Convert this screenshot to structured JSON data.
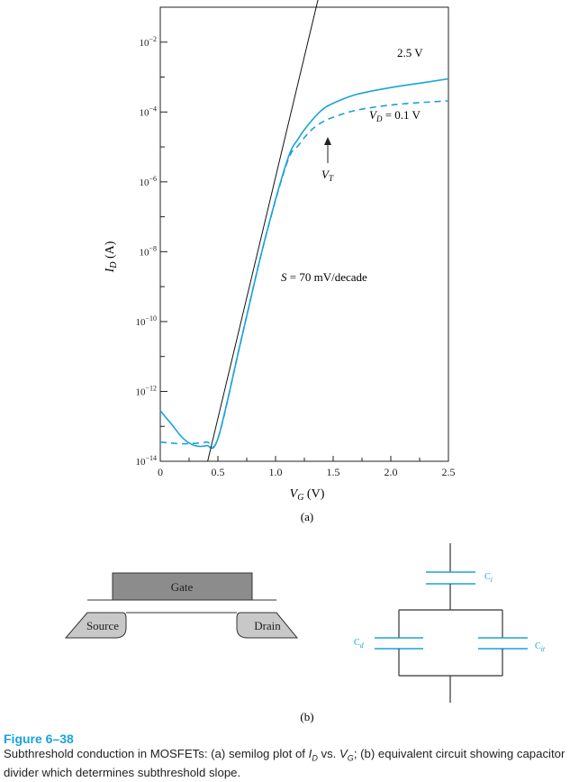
{
  "chart_data": {
    "type": "line",
    "x_range": [
      0,
      2.5
    ],
    "y_scale": "log",
    "y_range": [
      1e-14,
      0.1
    ],
    "x_ticks": [
      "0",
      "0.5",
      "1.0",
      "1.5",
      "2.0",
      "2.5"
    ],
    "x_tick_values": [
      0,
      0.5,
      1.0,
      1.5,
      2.0,
      2.5
    ],
    "y_tick_values": [
      -2,
      -4,
      -6,
      -8,
      -10,
      -12,
      -14
    ],
    "y_ticks": [
      {
        "base": "10",
        "exp": "−2"
      },
      {
        "base": "10",
        "exp": "−4"
      },
      {
        "base": "10",
        "exp": "−6"
      },
      {
        "base": "10",
        "exp": "−8"
      },
      {
        "base": "10",
        "exp": "−10"
      },
      {
        "base": "10",
        "exp": "−12"
      },
      {
        "base": "10",
        "exp": "−14"
      }
    ],
    "xlabel": {
      "var": "V",
      "sub": "G",
      "unit": " (V)"
    },
    "ylabel": {
      "var": "I",
      "sub": "D",
      "unit": " (A)"
    },
    "series": [
      {
        "name": "2.5 V",
        "style": "solid",
        "color": "#1aa3d9",
        "x": [
          0.0,
          0.1,
          0.2,
          0.3,
          0.4,
          0.5,
          0.7,
          0.9,
          1.1,
          1.2,
          1.3,
          1.4,
          1.5,
          1.7,
          2.0,
          2.3,
          2.5
        ],
        "y": [
          -12.55,
          -12.95,
          -13.35,
          -13.55,
          -13.55,
          -13.35,
          -10.55,
          -7.75,
          -5.4,
          -4.75,
          -4.3,
          -3.95,
          -3.75,
          -3.5,
          -3.3,
          -3.15,
          -3.05
        ]
      },
      {
        "name": "VD = 0.1 V",
        "style": "dashed",
        "color": "#1aa3d9",
        "x": [
          0.0,
          0.2,
          0.4,
          0.5,
          0.7,
          0.9,
          1.1,
          1.2,
          1.3,
          1.4,
          1.5,
          1.7,
          2.0,
          2.3,
          2.5
        ],
        "y": [
          -13.45,
          -13.5,
          -13.45,
          -13.35,
          -10.55,
          -7.75,
          -5.45,
          -4.95,
          -4.55,
          -4.3,
          -4.15,
          -3.95,
          -3.8,
          -3.72,
          -3.68
        ]
      },
      {
        "name": "S = 70 mV/decade",
        "style": "solid",
        "color": "#111111",
        "x": [
          0.411,
          1.425
        ],
        "y": [
          -14.0,
          0.0
        ]
      }
    ],
    "annotations": {
      "label_25": "2.5 V",
      "label_vd": {
        "var": "V",
        "sub": "D",
        "rest": " = 0.1 V"
      },
      "label_vt": {
        "var": "V",
        "sub": "T"
      },
      "label_s": {
        "var": "S",
        "rest": " = 70 mV/decade"
      },
      "part_a": "(a)"
    },
    "grid": false
  },
  "diagram": {
    "gate": "Gate",
    "source": "Source",
    "drain": "Drain",
    "ci": {
      "base": "C",
      "sub": "i"
    },
    "cd": {
      "base": "C",
      "sub": "d"
    },
    "cit": {
      "base": "C",
      "sub": "it"
    },
    "part_b": "(b)"
  },
  "caption": {
    "title": "Figure 6–38",
    "text_parts": [
      "Subthreshold conduction in MOSFETs: (a) semilog plot of ",
      "I",
      "D",
      " vs. ",
      "V",
      "G",
      "; (b) equivalent circuit showing capacitor divider which determines subthreshold slope."
    ]
  },
  "colors": {
    "accent": "#1aa3d9",
    "gate_fill": "#8c8c8c",
    "sd_fill": "#c8c8c8"
  }
}
